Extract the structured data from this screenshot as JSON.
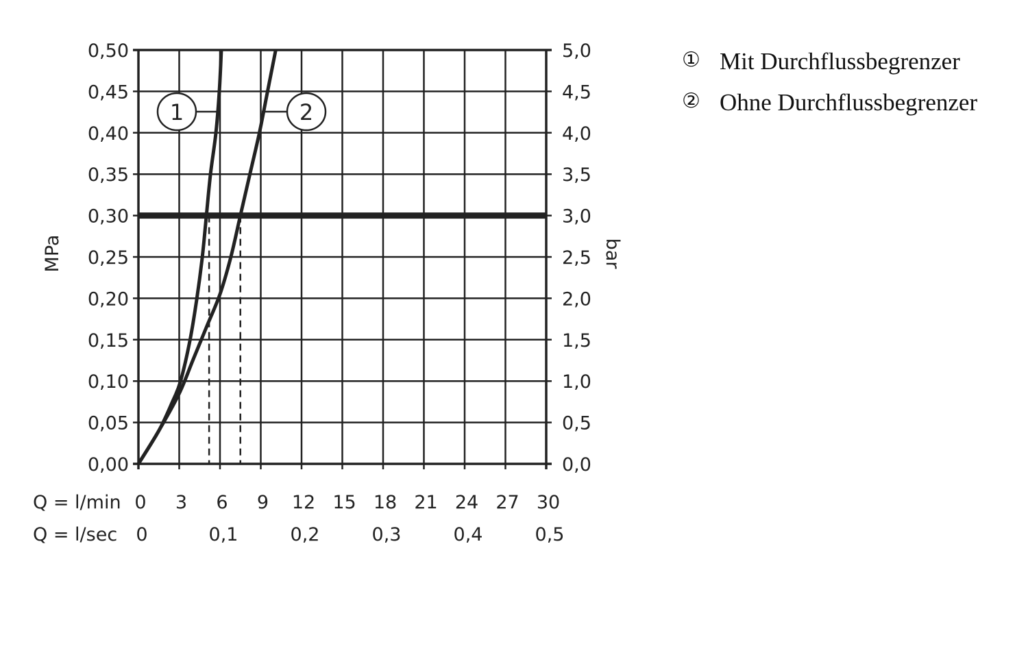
{
  "chart_data": {
    "type": "line",
    "xlabel": "Q = l/min",
    "xlabel2": "Q = l/sec",
    "ylabel": "MPa",
    "ylabel_right": "bar",
    "xlim": [
      0,
      30
    ],
    "ylim": [
      0,
      0.5
    ],
    "grid": true,
    "x_ticks": [
      "0",
      "3",
      "6",
      "9",
      "12",
      "15",
      "18",
      "21",
      "24",
      "27",
      "30"
    ],
    "x2_ticks": [
      {
        "at": 0,
        "label": "0"
      },
      {
        "at": 6,
        "label": "0,1"
      },
      {
        "at": 12,
        "label": "0,2"
      },
      {
        "at": 18,
        "label": "0,3"
      },
      {
        "at": 24,
        "label": "0,4"
      },
      {
        "at": 30,
        "label": "0,5"
      }
    ],
    "y_ticks": [
      "0,00",
      "0,05",
      "0,10",
      "0,15",
      "0,20",
      "0,25",
      "0,30",
      "0,35",
      "0,40",
      "0,45",
      "0,50"
    ],
    "y_right_ticks": [
      "0,0",
      "0,5",
      "1,0",
      "1,5",
      "2,0",
      "2,5",
      "3,0",
      "3,5",
      "4,0",
      "4,5",
      "5,0"
    ],
    "reference_line_y": 0.3,
    "dashed_x": [
      5.2,
      7.5
    ],
    "series": [
      {
        "name": "1",
        "x": [
          0,
          1.5,
          2.5,
          3.1,
          3.8,
          4.3,
          4.7,
          5.0,
          5.3,
          5.7,
          5.95,
          6.1
        ],
        "y": [
          0,
          0.04,
          0.075,
          0.1,
          0.15,
          0.2,
          0.25,
          0.3,
          0.35,
          0.4,
          0.45,
          0.5
        ]
      },
      {
        "name": "2",
        "x": [
          0,
          1.5,
          3,
          4,
          5,
          6,
          6.8,
          7.5,
          8.2,
          8.9,
          9.5,
          10.1
        ],
        "y": [
          0,
          0.04,
          0.085,
          0.125,
          0.165,
          0.205,
          0.25,
          0.3,
          0.35,
          0.4,
          0.45,
          0.5
        ]
      }
    ],
    "curve_labels": [
      "1",
      "2"
    ]
  },
  "legend": [
    {
      "marker": "①",
      "text": "Mit Durchflussbegrenzer"
    },
    {
      "marker": "②",
      "text": "Ohne Durchflussbegrenzer"
    }
  ],
  "colors": {
    "line": "#222222",
    "background": "#ffffff"
  }
}
